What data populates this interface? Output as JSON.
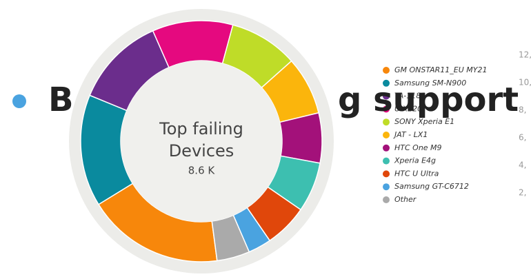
{
  "chart_data": {
    "type": "pie",
    "center_title": "Top failing Devices",
    "center_value": "8.6 K",
    "categories": [
      "GM ONSTAR11_EU MY21",
      "Samsung SM-N900",
      "TA-1182",
      "U-X220",
      "SONY Xperia E1",
      "JAT - LX1",
      "HTC One M9",
      "Xperia E4g",
      "HTC U Ultra",
      "Samsung GT-C6712",
      "Other"
    ],
    "values": [
      18.3,
      15,
      12.2,
      10.8,
      9.2,
      7.8,
      6.7,
      6.7,
      5.8,
      3.1,
      4.4
    ],
    "colors": [
      "#f7870b",
      "#0a8a9e",
      "#6b2d8c",
      "#e5097f",
      "#bfdc28",
      "#fbb50c",
      "#a3117a",
      "#3dbfb0",
      "#e0470b",
      "#4aa3e0",
      "#aaaaaa"
    ],
    "legend": "right"
  },
  "bullet": {
    "left": "B",
    "right": "g support"
  },
  "side_labels": [
    "12,",
    "10,",
    "8,",
    "6,",
    "4,",
    "2,"
  ]
}
